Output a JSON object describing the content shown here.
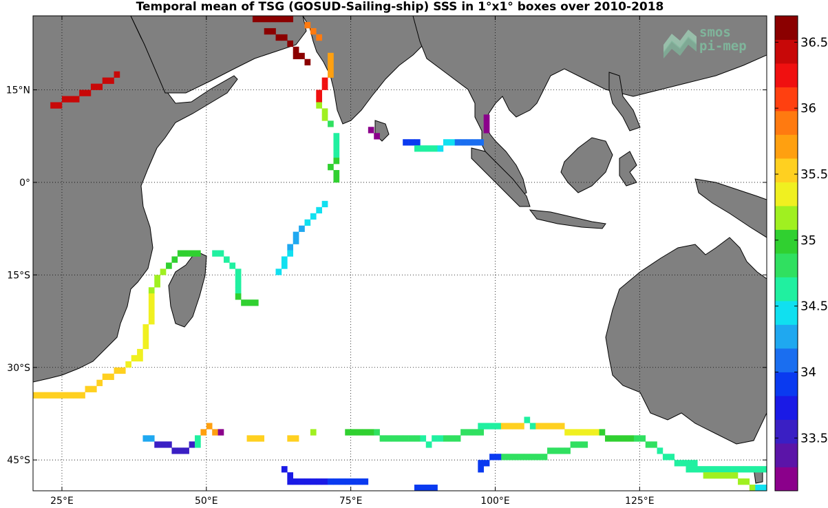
{
  "title": "Temporal mean of TSG (GOSUD-Sailing-ship) SSS in 1°x1° boxes over 2010-2018",
  "logo": {
    "line1": "smos",
    "line2": "pi-mep",
    "icon": "waves-logo-icon"
  },
  "axes": {
    "lon_range": [
      20,
      147
    ],
    "lat_range": [
      -50,
      27
    ],
    "lon_ticks": [
      25,
      50,
      75,
      100,
      125
    ],
    "lon_tick_labels": [
      "25°E",
      "50°E",
      "75°E",
      "100°E",
      "125°E"
    ],
    "lat_ticks": [
      15,
      0,
      -15,
      -30,
      -45
    ],
    "lat_tick_labels": [
      "15°N",
      "0°",
      "15°S",
      "30°S",
      "45°S"
    ],
    "grid": "dotted"
  },
  "colorbar": {
    "min": 33.1,
    "max": 36.7,
    "ticks": [
      36.5,
      36,
      35.5,
      35,
      34.5,
      34,
      33.5
    ],
    "tick_labels": [
      "36.5",
      "36",
      "35.5",
      "35",
      "34.5",
      "34",
      "33.5"
    ],
    "colors": [
      "#8b008b",
      "#5b14a8",
      "#3a1fc4",
      "#1a1ae6",
      "#0a3af0",
      "#1a6ef0",
      "#1fa8f0",
      "#10e0f0",
      "#20f0a0",
      "#30e060",
      "#30d030",
      "#a0f020",
      "#f0f020",
      "#ffd020",
      "#ffa010",
      "#ff7a10",
      "#ff4010",
      "#f01010",
      "#c80808",
      "#8b0000"
    ],
    "placement": "right"
  },
  "colors": {
    "land": "#808080",
    "coast": "#000000",
    "background": "#ffffff"
  },
  "chart_data": {
    "type": "heatmap",
    "title": "Temporal mean of TSG (GOSUD-Sailing-ship) SSS in 1°x1° boxes over 2010-2018",
    "xlabel": "",
    "ylabel": "",
    "units": "",
    "cell_size_deg": 1,
    "x_range": [
      20,
      147
    ],
    "y_range": [
      -50,
      27
    ],
    "tracks": [
      {
        "points": [
          [
            58,
            26
          ],
          [
            61,
            26
          ],
          [
            64,
            26
          ]
        ],
        "value": 36.65
      },
      {
        "points": [
          [
            60,
            24
          ],
          [
            62,
            23
          ],
          [
            64,
            22
          ],
          [
            65,
            20
          ],
          [
            67,
            19
          ]
        ],
        "value": 36.6
      },
      {
        "points": [
          [
            67,
            25
          ],
          [
            68,
            24
          ],
          [
            69,
            23
          ]
        ],
        "value": 35.9
      },
      {
        "points": [
          [
            71,
            20
          ],
          [
            71,
            17
          ]
        ],
        "value": 35.8
      },
      {
        "points": [
          [
            70,
            16
          ],
          [
            69,
            14
          ],
          [
            69,
            13
          ]
        ],
        "value": 36.2
      },
      {
        "points": [
          [
            69,
            13
          ],
          [
            70,
            10
          ]
        ],
        "value": 35.2
      },
      {
        "points": [
          [
            70,
            10
          ],
          [
            71,
            9
          ]
        ],
        "value": 34.9
      },
      {
        "points": [
          [
            72,
            7
          ],
          [
            72,
            4
          ]
        ],
        "value": 34.7
      },
      {
        "points": [
          [
            72,
            4
          ],
          [
            71,
            2
          ],
          [
            72,
            0
          ]
        ],
        "value": 35.0
      },
      {
        "points": [
          [
            23,
            12
          ],
          [
            27,
            13
          ],
          [
            29,
            14
          ],
          [
            31,
            15
          ],
          [
            34,
            17
          ]
        ],
        "value": 36.5
      },
      {
        "points": [
          [
            78,
            8
          ],
          [
            79,
            7
          ]
        ],
        "value": 33.2
      },
      {
        "points": [
          [
            98,
            10
          ],
          [
            98,
            8
          ]
        ],
        "value": 33.2
      },
      {
        "points": [
          [
            84,
            6
          ],
          [
            86,
            6
          ]
        ],
        "value": 34.0
      },
      {
        "points": [
          [
            86,
            5
          ],
          [
            89,
            5
          ]
        ],
        "value": 34.7
      },
      {
        "points": [
          [
            89,
            5
          ],
          [
            92,
            6
          ]
        ],
        "value": 34.5
      },
      {
        "points": [
          [
            92,
            6
          ],
          [
            97,
            6
          ]
        ],
        "value": 34.1
      },
      {
        "points": [
          [
            70,
            -4
          ],
          [
            68,
            -6
          ],
          [
            67,
            -7
          ]
        ],
        "value": 34.5
      },
      {
        "points": [
          [
            67,
            -7
          ],
          [
            65,
            -9
          ],
          [
            64,
            -11
          ]
        ],
        "value": 34.3
      },
      {
        "points": [
          [
            64,
            -11
          ],
          [
            63,
            -13
          ],
          [
            62,
            -15
          ]
        ],
        "value": 34.4
      },
      {
        "points": [
          [
            48,
            -12
          ],
          [
            45,
            -12
          ],
          [
            43,
            -14
          ]
        ],
        "value": 35.0
      },
      {
        "points": [
          [
            43,
            -14
          ],
          [
            41,
            -16
          ],
          [
            40,
            -18
          ]
        ],
        "value": 35.2
      },
      {
        "points": [
          [
            40,
            -18
          ],
          [
            40,
            -22
          ],
          [
            39,
            -25
          ],
          [
            38,
            -29
          ],
          [
            36,
            -30
          ]
        ],
        "value": 35.4
      },
      {
        "points": [
          [
            36,
            -30
          ],
          [
            33,
            -32
          ],
          [
            31,
            -33
          ]
        ],
        "value": 35.5
      },
      {
        "points": [
          [
            31,
            -33
          ],
          [
            28,
            -35
          ],
          [
            20,
            -35
          ]
        ],
        "value": 35.5
      },
      {
        "points": [
          [
            51,
            -12
          ],
          [
            53,
            -13
          ],
          [
            55,
            -15
          ],
          [
            55,
            -18
          ]
        ],
        "value": 34.7
      },
      {
        "points": [
          [
            55,
            -19
          ],
          [
            56,
            -20
          ],
          [
            58,
            -20
          ]
        ],
        "value": 35.0
      },
      {
        "points": [
          [
            39,
            -42
          ],
          [
            40,
            -42
          ]
        ],
        "value": 34.2
      },
      {
        "points": [
          [
            41,
            -43
          ],
          [
            43,
            -43
          ],
          [
            44,
            -44
          ],
          [
            46,
            -44
          ],
          [
            47,
            -43
          ]
        ],
        "value": 33.5
      },
      {
        "points": [
          [
            48,
            -43
          ],
          [
            48,
            -42
          ]
        ],
        "value": 34.6
      },
      {
        "points": [
          [
            49,
            -41
          ],
          [
            50,
            -40
          ],
          [
            51,
            -41
          ]
        ],
        "value": 35.7
      },
      {
        "points": [
          [
            51,
            -41
          ],
          [
            52,
            -41
          ]
        ],
        "value": 33.2
      },
      {
        "points": [
          [
            57,
            -42
          ],
          [
            59,
            -42
          ]
        ],
        "value": 35.6
      },
      {
        "points": [
          [
            64,
            -42
          ],
          [
            65,
            -42
          ]
        ],
        "value": 35.6
      },
      {
        "points": [
          [
            68,
            -41
          ]
        ],
        "value": 35.2
      },
      {
        "points": [
          [
            74,
            -41
          ],
          [
            78,
            -41
          ]
        ],
        "value": 35.0
      },
      {
        "points": [
          [
            78,
            -41
          ],
          [
            80,
            -42
          ],
          [
            86,
            -42
          ]
        ],
        "value": 34.9
      },
      {
        "points": [
          [
            86,
            -42
          ],
          [
            88,
            -43
          ],
          [
            90,
            -42
          ]
        ],
        "value": 34.6
      },
      {
        "points": [
          [
            90,
            -42
          ],
          [
            93,
            -42
          ],
          [
            95,
            -41
          ],
          [
            97,
            -41
          ]
        ],
        "value": 34.8
      },
      {
        "points": [
          [
            97,
            -40
          ],
          [
            100,
            -40
          ]
        ],
        "value": 34.6
      },
      {
        "points": [
          [
            101,
            -40
          ],
          [
            104,
            -40
          ]
        ],
        "value": 35.6
      },
      {
        "points": [
          [
            105,
            -39
          ],
          [
            106,
            -40
          ]
        ],
        "value": 34.6
      },
      {
        "points": [
          [
            106,
            -40
          ],
          [
            111,
            -40
          ]
        ],
        "value": 35.6
      },
      {
        "points": [
          [
            112,
            -41
          ],
          [
            117,
            -41
          ]
        ],
        "value": 35.3
      },
      {
        "points": [
          [
            117,
            -41
          ],
          [
            120,
            -42
          ],
          [
            123,
            -42
          ]
        ],
        "value": 35.0
      },
      {
        "points": [
          [
            124,
            -42
          ],
          [
            127,
            -43
          ]
        ],
        "value": 34.9
      },
      {
        "points": [
          [
            127,
            -43
          ],
          [
            129,
            -45
          ],
          [
            131,
            -46
          ],
          [
            134,
            -46
          ]
        ],
        "value": 34.6
      },
      {
        "points": [
          [
            133,
            -47
          ],
          [
            139,
            -47
          ],
          [
            146,
            -47
          ]
        ],
        "value": 34.6
      },
      {
        "points": [
          [
            136,
            -48
          ],
          [
            140,
            -48
          ],
          [
            143,
            -49
          ],
          [
            144,
            -50
          ]
        ],
        "value": 35.1
      },
      {
        "points": [
          [
            145,
            -50
          ],
          [
            146,
            -50
          ]
        ],
        "value": 34.4
      },
      {
        "points": [
          [
            115,
            -43
          ],
          [
            110,
            -44
          ],
          [
            107,
            -45
          ],
          [
            101,
            -45
          ]
        ],
        "value": 34.9
      },
      {
        "points": [
          [
            101,
            -45
          ],
          [
            97,
            -46
          ]
        ],
        "value": 34.0
      },
      {
        "points": [
          [
            97,
            -46
          ],
          [
            97,
            -47
          ]
        ],
        "value": 34.0
      },
      {
        "points": [
          [
            63,
            -47
          ],
          [
            64,
            -49
          ],
          [
            70,
            -49
          ]
        ],
        "value": 33.8
      },
      {
        "points": [
          [
            70,
            -49
          ],
          [
            77,
            -49
          ]
        ],
        "value": 33.9
      },
      {
        "points": [
          [
            86,
            -50
          ],
          [
            89,
            -50
          ]
        ],
        "value": 33.9
      }
    ]
  }
}
